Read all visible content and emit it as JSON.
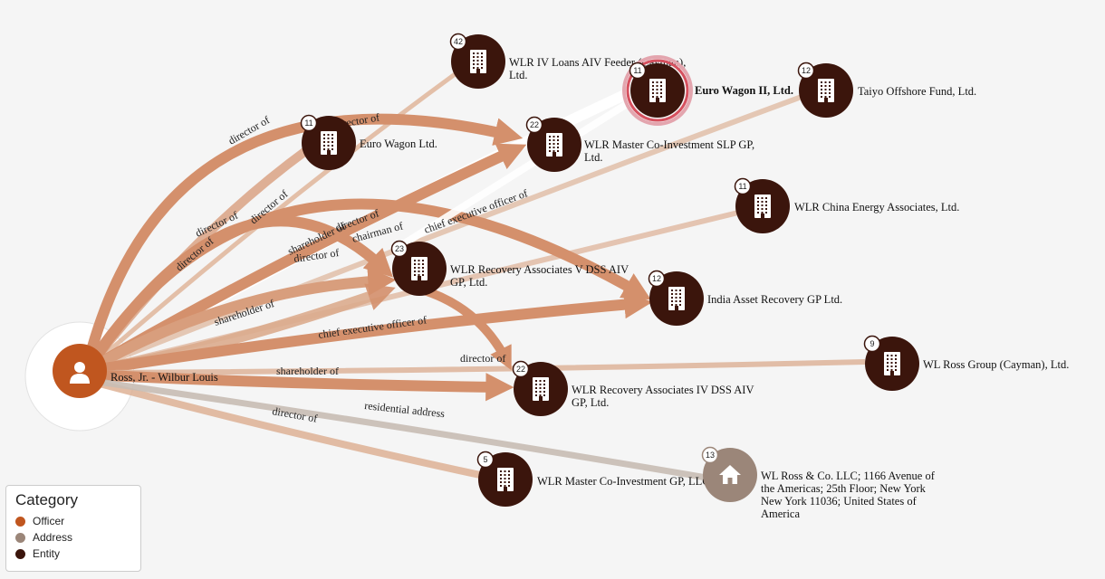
{
  "legend": {
    "title": "Category",
    "items": [
      {
        "label": "Officer",
        "color": "#c0561f"
      },
      {
        "label": "Address",
        "color": "#9b8679"
      },
      {
        "label": "Entity",
        "color": "#3b150c"
      }
    ]
  },
  "nodes": [
    {
      "id": "ross",
      "category": "Officer",
      "label": [
        "Ross, Jr. - Wilbur Louis"
      ],
      "icon": "person-icon"
    },
    {
      "id": "wlr_iv_loans",
      "category": "Entity",
      "badge": "42",
      "label": [
        "WLR IV Loans AIV Feeder (Cayman),",
        "Ltd."
      ],
      "icon": "building-icon"
    },
    {
      "id": "euro_wagon_ii",
      "category": "Entity",
      "badge": "11",
      "label": [
        "Euro Wagon II, Ltd."
      ],
      "bold": true,
      "selected": true,
      "icon": "building-icon"
    },
    {
      "id": "taiyo",
      "category": "Entity",
      "badge": "12",
      "label": [
        "Taiyo Offshore Fund, Ltd."
      ],
      "icon": "building-icon"
    },
    {
      "id": "euro_wagon",
      "category": "Entity",
      "badge": "11",
      "label": [
        "Euro Wagon Ltd."
      ],
      "icon": "building-icon"
    },
    {
      "id": "wlr_master_slp",
      "category": "Entity",
      "badge": "22",
      "label": [
        "WLR Master Co-Investment SLP GP,",
        "Ltd."
      ],
      "icon": "building-icon"
    },
    {
      "id": "wlr_china",
      "category": "Entity",
      "badge": "11",
      "label": [
        "WLR China Energy Associates, Ltd."
      ],
      "icon": "building-icon"
    },
    {
      "id": "wlr_recovery_v",
      "category": "Entity",
      "badge": "23",
      "label": [
        "WLR Recovery Associates V DSS AIV",
        "GP, Ltd."
      ],
      "icon": "building-icon"
    },
    {
      "id": "india_asset",
      "category": "Entity",
      "badge": "12",
      "label": [
        "India Asset Recovery GP Ltd."
      ],
      "icon": "building-icon"
    },
    {
      "id": "wl_ross_group",
      "category": "Entity",
      "badge": "9",
      "label": [
        "WL Ross Group (Cayman), Ltd."
      ],
      "icon": "building-icon"
    },
    {
      "id": "wlr_recovery_iv",
      "category": "Entity",
      "badge": "22",
      "label": [
        "WLR Recovery Associates IV DSS AIV",
        "GP, Ltd."
      ],
      "icon": "building-icon"
    },
    {
      "id": "wlr_master_gp",
      "category": "Entity",
      "badge": "5",
      "label": [
        "WLR Master Co-Investment GP, LLC"
      ],
      "icon": "building-icon"
    },
    {
      "id": "address",
      "category": "Address",
      "badge": "13",
      "label": [
        "WL Ross & Co. LLC; 1166 Avenue of",
        "the Americas; 25th Floor; New York",
        "New York  11036; United States of",
        "America"
      ],
      "icon": "house-icon"
    }
  ],
  "edges": [
    {
      "target": "wlr_iv_loans",
      "label": "director of",
      "type": "line"
    },
    {
      "target": "euro_wagon_ii",
      "label": "director of",
      "type": "line"
    },
    {
      "target": "taiyo",
      "label": "director of",
      "type": "line"
    },
    {
      "target": "euro_wagon",
      "label": "director of",
      "type": "line"
    },
    {
      "target": "wlr_master_slp",
      "label": "director of",
      "type": "arrow"
    },
    {
      "target": "wlr_master_slp",
      "label": "shareholder of",
      "type": "arrow"
    },
    {
      "target": "wlr_china",
      "label": "director of",
      "type": "line"
    },
    {
      "target": "wlr_recovery_v",
      "label": "director of",
      "type": "arrow"
    },
    {
      "target": "wlr_recovery_v",
      "label": "shareholder of",
      "type": "arrow"
    },
    {
      "target": "wlr_recovery_v",
      "label": "chairman of",
      "type": "arrow"
    },
    {
      "target": "india_asset",
      "label": "director of",
      "type": "arrow"
    },
    {
      "target": "india_asset",
      "label": "chief executive officer of",
      "type": "arrow"
    },
    {
      "target": "wl_ross_group",
      "label": "director of",
      "type": "line"
    },
    {
      "target": "wlr_recovery_iv",
      "label": "shareholder of",
      "type": "arrow"
    },
    {
      "target": "wlr_recovery_iv",
      "label": "director of",
      "type": "arrow"
    },
    {
      "target": "wlr_master_gp",
      "label": "director of",
      "type": "line"
    },
    {
      "target": "address",
      "label": "residential address",
      "type": "line"
    }
  ]
}
